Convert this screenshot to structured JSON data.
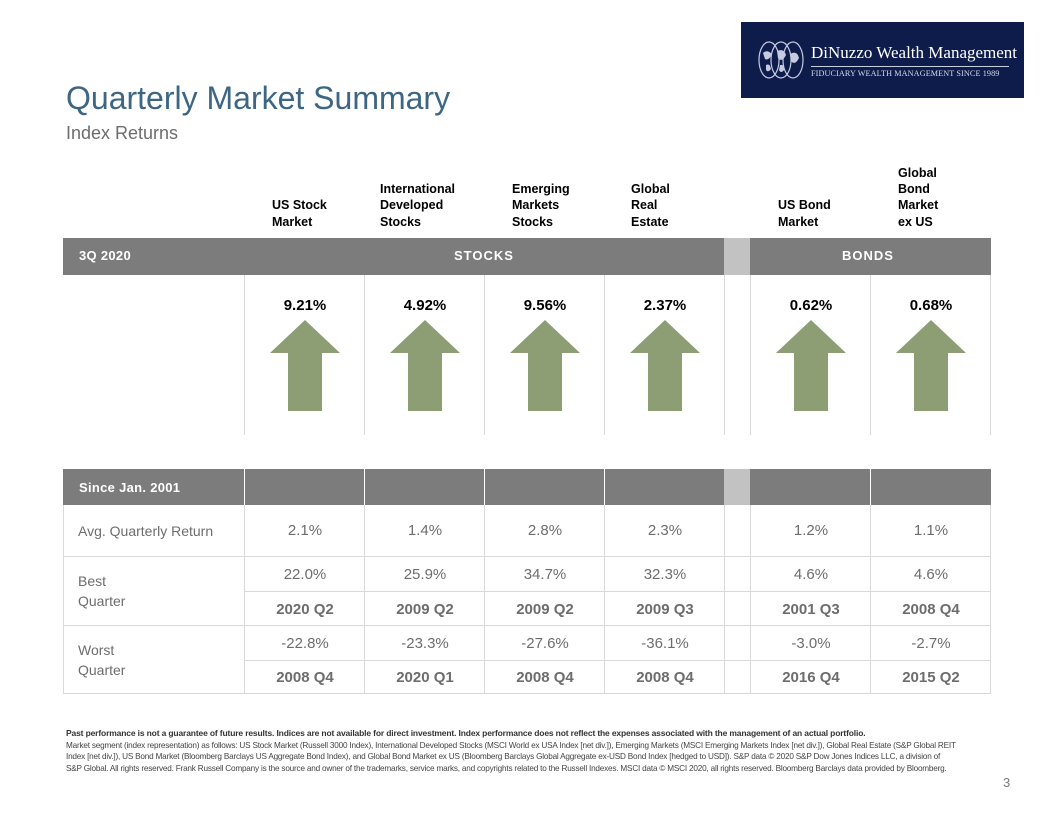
{
  "logo": {
    "name": "DiNuzzo Wealth Management",
    "tagline": "FIDUCIARY WEALTH MANAGEMENT SINCE 1989"
  },
  "title": "Quarterly Market Summary",
  "subtitle": "Index Returns",
  "columns": [
    "US Stock\nMarket",
    "International\nDeveloped\nStocks",
    "Emerging\nMarkets\nStocks",
    "Global\nReal\nEstate",
    "US Bond\nMarket",
    "Global\nBond\nMarket\nex US"
  ],
  "quarter_band": {
    "period": "3Q 2020",
    "stocks": "STOCKS",
    "bonds": "BONDS"
  },
  "quarter_returns": [
    "9.21%",
    "4.92%",
    "9.56%",
    "2.37%",
    "0.62%",
    "0.68%"
  ],
  "arrow_direction": [
    "up",
    "up",
    "up",
    "up",
    "up",
    "up"
  ],
  "arrow_color": "#8e9e74",
  "since_band": {
    "label": "Since Jan. 2001"
  },
  "rows": {
    "avg": {
      "label": "Avg. Quarterly Return",
      "values": [
        "2.1%",
        "1.4%",
        "2.8%",
        "2.3%",
        "1.2%",
        "1.1%"
      ]
    },
    "best": {
      "label": "Best\nQuarter",
      "values": [
        "22.0%",
        "25.9%",
        "34.7%",
        "32.3%",
        "4.6%",
        "4.6%"
      ],
      "quarters": [
        "2020 Q2",
        "2009 Q2",
        "2009 Q2",
        "2009 Q3",
        "2001 Q3",
        "2008 Q4"
      ]
    },
    "worst": {
      "label": "Worst\nQuarter",
      "values": [
        "-22.8%",
        "-23.3%",
        "-27.6%",
        "-36.1%",
        "-3.0%",
        "-2.7%"
      ],
      "quarters": [
        "2008 Q4",
        "2020 Q1",
        "2008 Q4",
        "2008 Q4",
        "2016 Q4",
        "2015 Q2"
      ]
    }
  },
  "disclaimer_bold": "Past performance is not a guarantee of future results. Indices are not available for direct investment. Index performance does not reflect the expenses associated with the management of an actual portfolio.",
  "disclaimer": "Market segment (index representation) as follows: US Stock Market (Russell 3000 Index), International Developed Stocks (MSCI World ex USA Index [net div.]), Emerging Markets (MSCI Emerging Markets Index [net div.]), Global Real Estate (S&P Global REIT Index [net div.]), US Bond Market (Bloomberg Barclays US Aggregate Bond Index), and Global Bond Market ex US (Bloomberg Barclays Global Aggregate ex-USD Bond Index [hedged to USD]). S&P data © 2020 S&P Dow Jones Indices LLC, a division of S&P Global. All rights reserved. Frank Russell Company is the source and owner of the trademarks, service marks, and copyrights related to the Russell Indexes. MSCI data © MSCI 2020, all rights reserved. Bloomberg Barclays data provided by Bloomberg.",
  "page_number": "3"
}
